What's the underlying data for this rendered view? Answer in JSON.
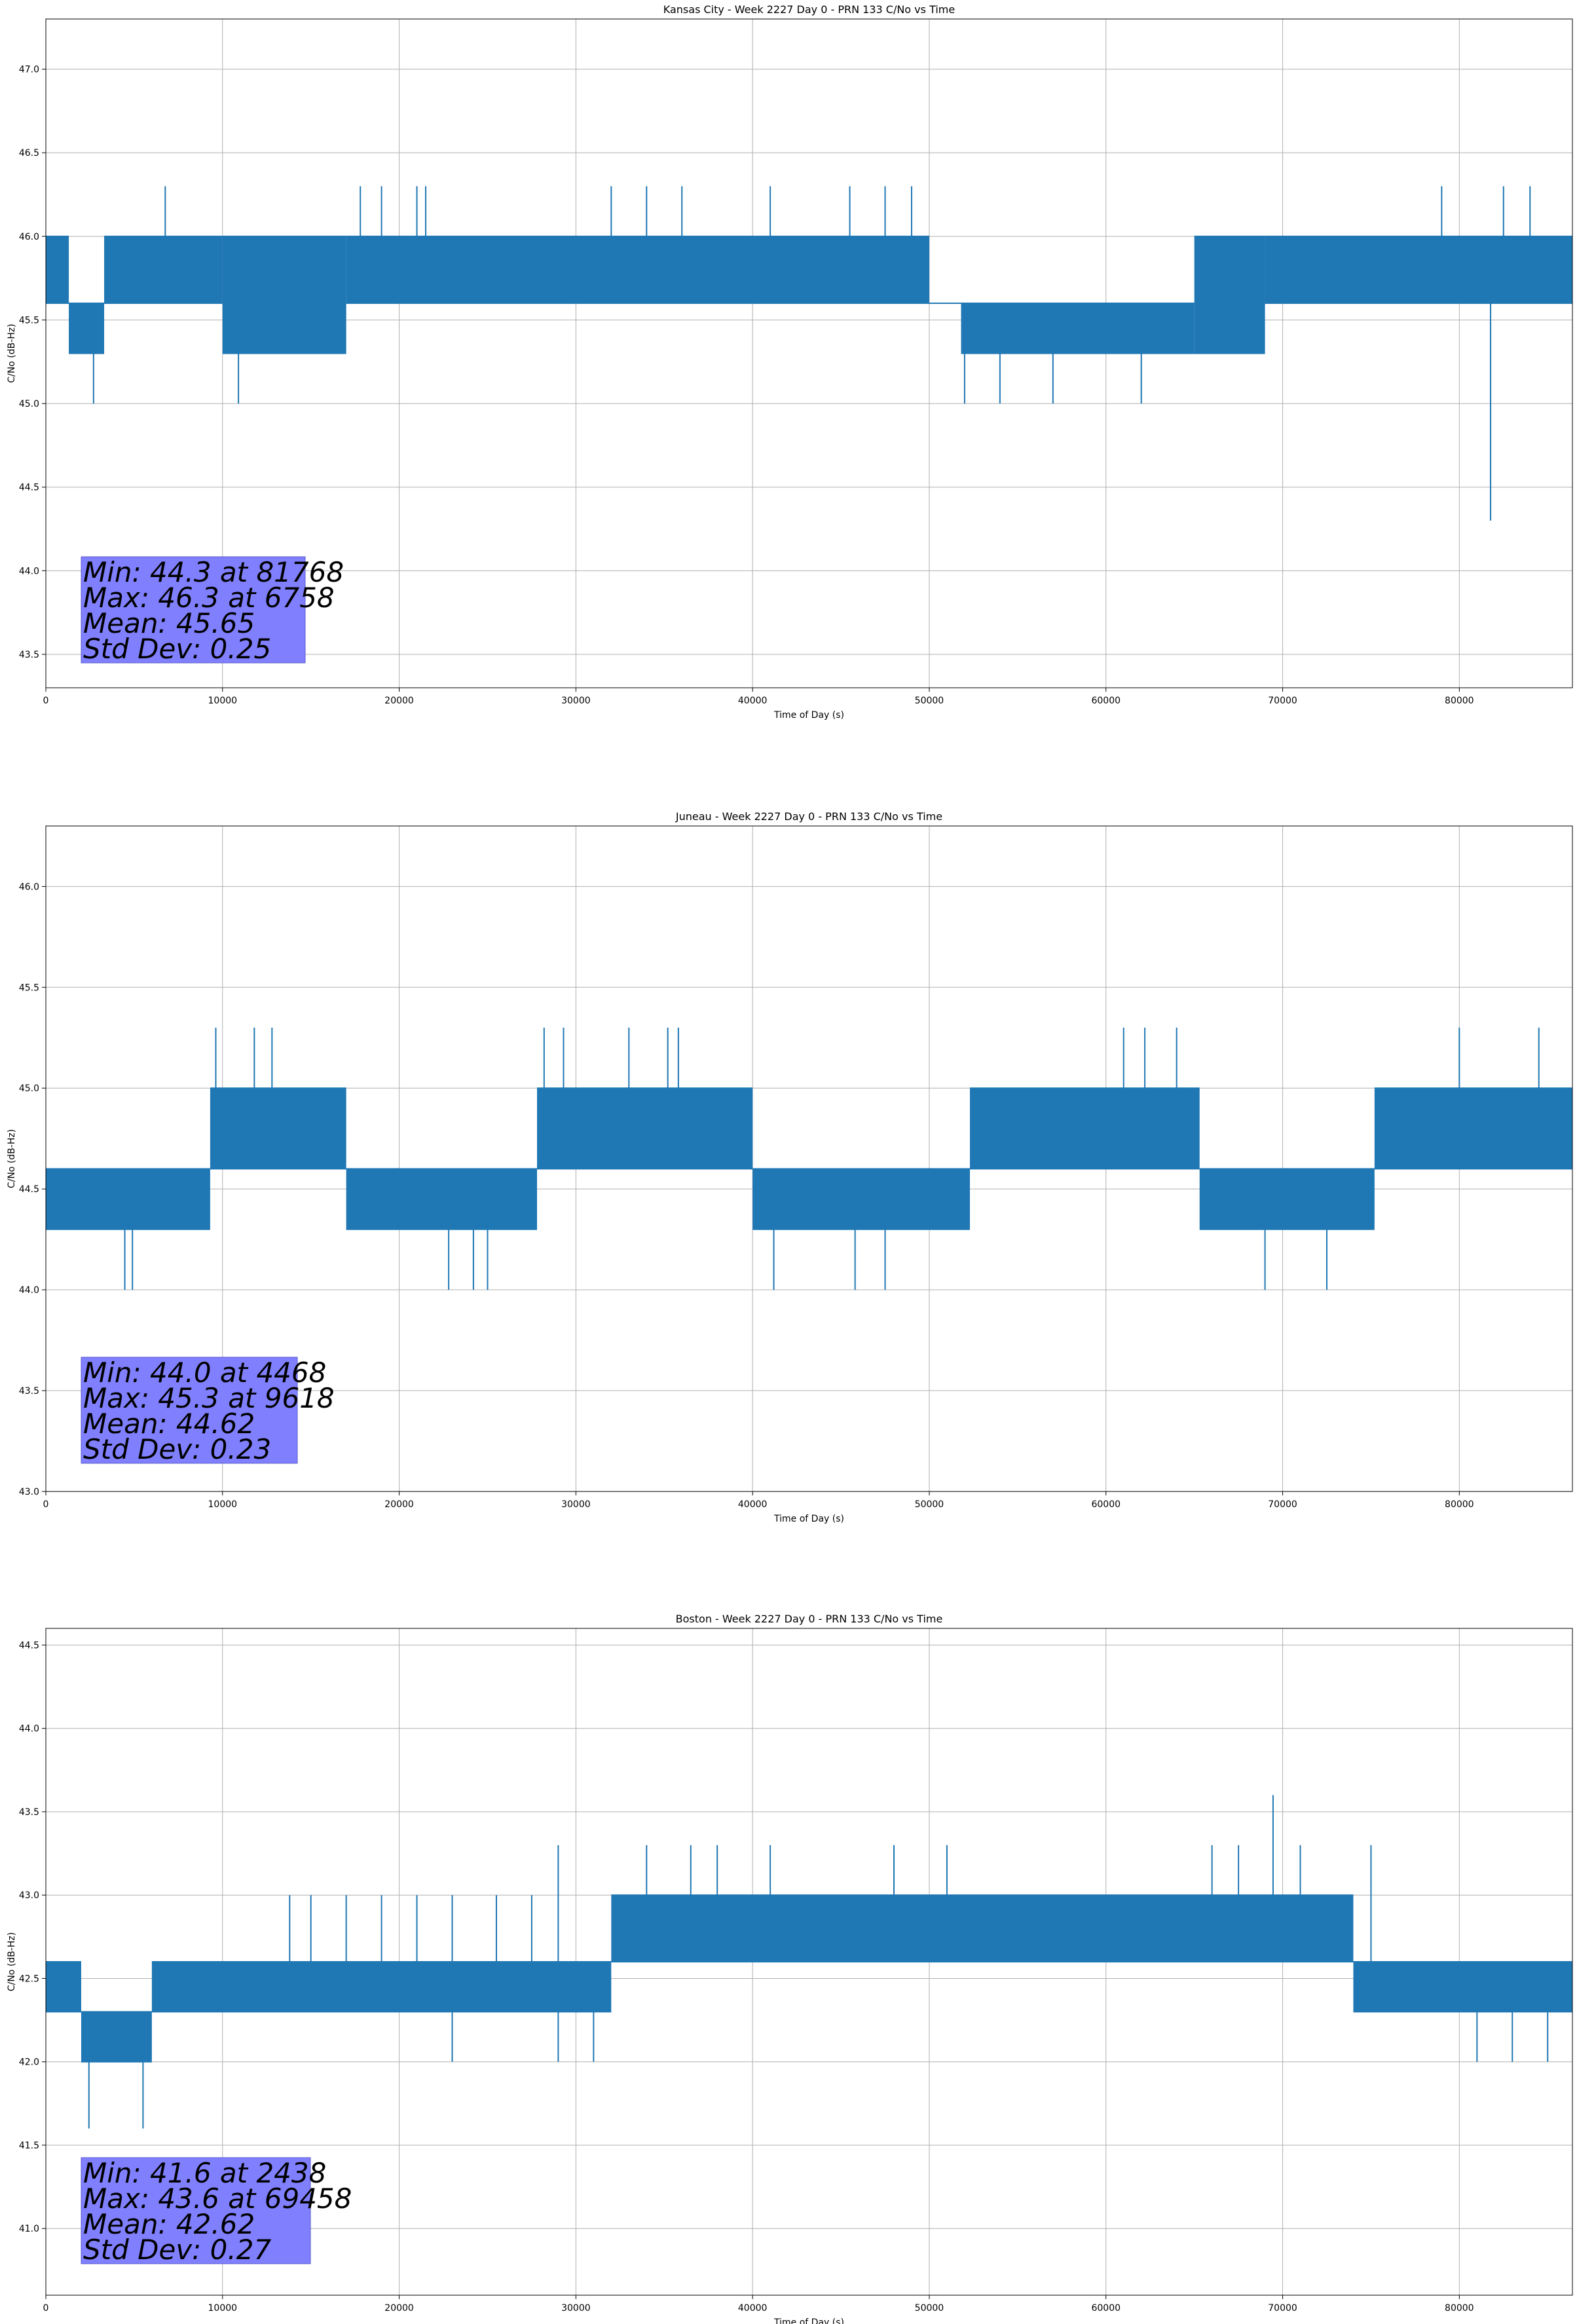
{
  "chart_data": [
    {
      "type": "line",
      "title": "Kansas City - Week 2227 Day 0 - PRN 133 C/No vs Time",
      "xlabel": "Time of Day (s)",
      "ylabel": "C/No (dB-Hz)",
      "xlim": [
        0,
        86400
      ],
      "ylim": [
        43.3,
        47.3
      ],
      "xticks": [
        0,
        10000,
        20000,
        30000,
        40000,
        50000,
        60000,
        70000,
        80000
      ],
      "yticks": [
        43.5,
        44.0,
        44.5,
        45.0,
        45.5,
        46.0,
        46.5,
        47.0
      ],
      "grid": true,
      "series_color": "#1f77b4",
      "series": [
        {
          "name": "C/No",
          "segments": [
            {
              "t0": 0,
              "t1": 1300,
              "lo": 45.6,
              "hi": 46.0
            },
            {
              "t0": 1300,
              "t1": 3300,
              "lo": 45.3,
              "hi": 45.6
            },
            {
              "t0": 3300,
              "t1": 10000,
              "lo": 45.6,
              "hi": 46.0
            },
            {
              "t0": 10000,
              "t1": 17000,
              "lo": 45.3,
              "hi": 46.0
            },
            {
              "t0": 17000,
              "t1": 50000,
              "lo": 45.6,
              "hi": 46.0
            },
            {
              "t0": 50000,
              "t1": 51800,
              "lo": 45.6,
              "hi": 45.6
            },
            {
              "t0": 51800,
              "t1": 65000,
              "lo": 45.3,
              "hi": 45.6
            },
            {
              "t0": 65000,
              "t1": 69000,
              "lo": 45.3,
              "hi": 46.0
            },
            {
              "t0": 69000,
              "t1": 86400,
              "lo": 45.6,
              "hi": 46.0
            }
          ],
          "spikes": [
            {
              "t": 6758,
              "v": 46.3
            },
            {
              "t": 17800,
              "v": 46.3
            },
            {
              "t": 19000,
              "v": 46.3
            },
            {
              "t": 21000,
              "v": 46.3
            },
            {
              "t": 21500,
              "v": 46.3
            },
            {
              "t": 32000,
              "v": 46.3
            },
            {
              "t": 34000,
              "v": 46.3
            },
            {
              "t": 36000,
              "v": 46.3
            },
            {
              "t": 41000,
              "v": 46.3
            },
            {
              "t": 45500,
              "v": 46.3
            },
            {
              "t": 47500,
              "v": 46.3
            },
            {
              "t": 49000,
              "v": 46.3
            },
            {
              "t": 79000,
              "v": 46.3
            },
            {
              "t": 82500,
              "v": 46.3
            },
            {
              "t": 84000,
              "v": 46.3
            },
            {
              "t": 2700,
              "v": 45.0
            },
            {
              "t": 10900,
              "v": 45.0
            },
            {
              "t": 52000,
              "v": 45.0
            },
            {
              "t": 54000,
              "v": 45.0
            },
            {
              "t": 57000,
              "v": 45.0
            },
            {
              "t": 62000,
              "v": 45.0
            },
            {
              "t": 81768,
              "v": 44.3
            }
          ]
        }
      ],
      "stats": {
        "min_line": "Min: 44.3 at 81768",
        "max_line": "Max: 46.3 at 6758",
        "mean_line": "Mean: 45.65",
        "std_line": "Std Dev: 0.25"
      }
    },
    {
      "type": "line",
      "title": "Juneau - Week 2227 Day 0 - PRN 133 C/No vs Time",
      "xlabel": "Time of Day (s)",
      "ylabel": "C/No (dB-Hz)",
      "xlim": [
        0,
        86400
      ],
      "ylim": [
        43.0,
        46.3
      ],
      "xticks": [
        0,
        10000,
        20000,
        30000,
        40000,
        50000,
        60000,
        70000,
        80000
      ],
      "yticks": [
        43.0,
        43.5,
        44.0,
        44.5,
        45.0,
        45.5,
        46.0
      ],
      "grid": true,
      "series_color": "#1f77b4",
      "series": [
        {
          "name": "C/No",
          "segments": [
            {
              "t0": 0,
              "t1": 9300,
              "lo": 44.3,
              "hi": 44.6
            },
            {
              "t0": 9300,
              "t1": 17000,
              "lo": 44.6,
              "hi": 45.0
            },
            {
              "t0": 17000,
              "t1": 27800,
              "lo": 44.3,
              "hi": 44.6
            },
            {
              "t0": 27800,
              "t1": 40000,
              "lo": 44.6,
              "hi": 45.0
            },
            {
              "t0": 40000,
              "t1": 52300,
              "lo": 44.3,
              "hi": 44.6
            },
            {
              "t0": 52300,
              "t1": 65300,
              "lo": 44.6,
              "hi": 45.0
            },
            {
              "t0": 65300,
              "t1": 75200,
              "lo": 44.3,
              "hi": 44.6
            },
            {
              "t0": 75200,
              "t1": 86400,
              "lo": 44.6,
              "hi": 45.0
            }
          ],
          "spikes": [
            {
              "t": 9618,
              "v": 45.3
            },
            {
              "t": 11800,
              "v": 45.3
            },
            {
              "t": 12800,
              "v": 45.3
            },
            {
              "t": 28200,
              "v": 45.3
            },
            {
              "t": 29300,
              "v": 45.3
            },
            {
              "t": 33000,
              "v": 45.3
            },
            {
              "t": 35200,
              "v": 45.3
            },
            {
              "t": 35800,
              "v": 45.3
            },
            {
              "t": 61000,
              "v": 45.3
            },
            {
              "t": 62200,
              "v": 45.3
            },
            {
              "t": 64000,
              "v": 45.3
            },
            {
              "t": 80000,
              "v": 45.3
            },
            {
              "t": 84500,
              "v": 45.3
            },
            {
              "t": 4468,
              "v": 44.0
            },
            {
              "t": 4900,
              "v": 44.0
            },
            {
              "t": 22800,
              "v": 44.0
            },
            {
              "t": 24200,
              "v": 44.0
            },
            {
              "t": 25000,
              "v": 44.0
            },
            {
              "t": 41200,
              "v": 44.0
            },
            {
              "t": 45800,
              "v": 44.0
            },
            {
              "t": 47500,
              "v": 44.0
            },
            {
              "t": 69000,
              "v": 44.0
            },
            {
              "t": 72500,
              "v": 44.0
            }
          ]
        }
      ],
      "stats": {
        "min_line": "Min: 44.0 at 4468",
        "max_line": "Max: 45.3 at 9618",
        "mean_line": "Mean: 44.62",
        "std_line": "Std Dev: 0.23"
      }
    },
    {
      "type": "line",
      "title": "Boston - Week 2227 Day 0 - PRN 133 C/No vs Time",
      "xlabel": "Time of Day (s)",
      "ylabel": "C/No (dB-Hz)",
      "xlim": [
        0,
        86400
      ],
      "ylim": [
        40.6,
        44.6
      ],
      "xticks": [
        0,
        10000,
        20000,
        30000,
        40000,
        50000,
        60000,
        70000,
        80000
      ],
      "yticks": [
        41.0,
        41.5,
        42.0,
        42.5,
        43.0,
        43.5,
        44.0,
        44.5
      ],
      "grid": true,
      "series_color": "#1f77b4",
      "series": [
        {
          "name": "C/No",
          "segments": [
            {
              "t0": 0,
              "t1": 2000,
              "lo": 42.3,
              "hi": 42.6
            },
            {
              "t0": 2000,
              "t1": 6000,
              "lo": 42.0,
              "hi": 42.3
            },
            {
              "t0": 6000,
              "t1": 32000,
              "lo": 42.3,
              "hi": 42.6
            },
            {
              "t0": 32000,
              "t1": 74000,
              "lo": 42.6,
              "hi": 43.0
            },
            {
              "t0": 74000,
              "t1": 86400,
              "lo": 42.3,
              "hi": 42.6
            }
          ],
          "spikes": [
            {
              "t": 13800,
              "v": 43.0
            },
            {
              "t": 15000,
              "v": 43.0
            },
            {
              "t": 17000,
              "v": 43.0
            },
            {
              "t": 19000,
              "v": 43.0
            },
            {
              "t": 21000,
              "v": 43.0
            },
            {
              "t": 23000,
              "v": 43.0
            },
            {
              "t": 25500,
              "v": 43.0
            },
            {
              "t": 27500,
              "v": 43.0
            },
            {
              "t": 29000,
              "v": 43.3
            },
            {
              "t": 34000,
              "v": 43.3
            },
            {
              "t": 36500,
              "v": 43.3
            },
            {
              "t": 38000,
              "v": 43.3
            },
            {
              "t": 41000,
              "v": 43.3
            },
            {
              "t": 48000,
              "v": 43.3
            },
            {
              "t": 51000,
              "v": 43.3
            },
            {
              "t": 66000,
              "v": 43.3
            },
            {
              "t": 67500,
              "v": 43.3
            },
            {
              "t": 69458,
              "v": 43.6
            },
            {
              "t": 71000,
              "v": 43.3
            },
            {
              "t": 75000,
              "v": 43.3
            },
            {
              "t": 2438,
              "v": 41.6
            },
            {
              "t": 5500,
              "v": 41.6
            },
            {
              "t": 4000,
              "v": 42.0
            },
            {
              "t": 23000,
              "v": 42.0
            },
            {
              "t": 29000,
              "v": 42.0
            },
            {
              "t": 31000,
              "v": 42.0
            },
            {
              "t": 81000,
              "v": 42.0
            },
            {
              "t": 83000,
              "v": 42.0
            },
            {
              "t": 85000,
              "v": 42.0
            }
          ]
        }
      ],
      "stats": {
        "min_line": "Min: 41.6 at 2438",
        "max_line": "Max: 43.6 at 69458",
        "mean_line": "Mean: 42.62",
        "std_line": "Std Dev: 0.27"
      }
    }
  ]
}
